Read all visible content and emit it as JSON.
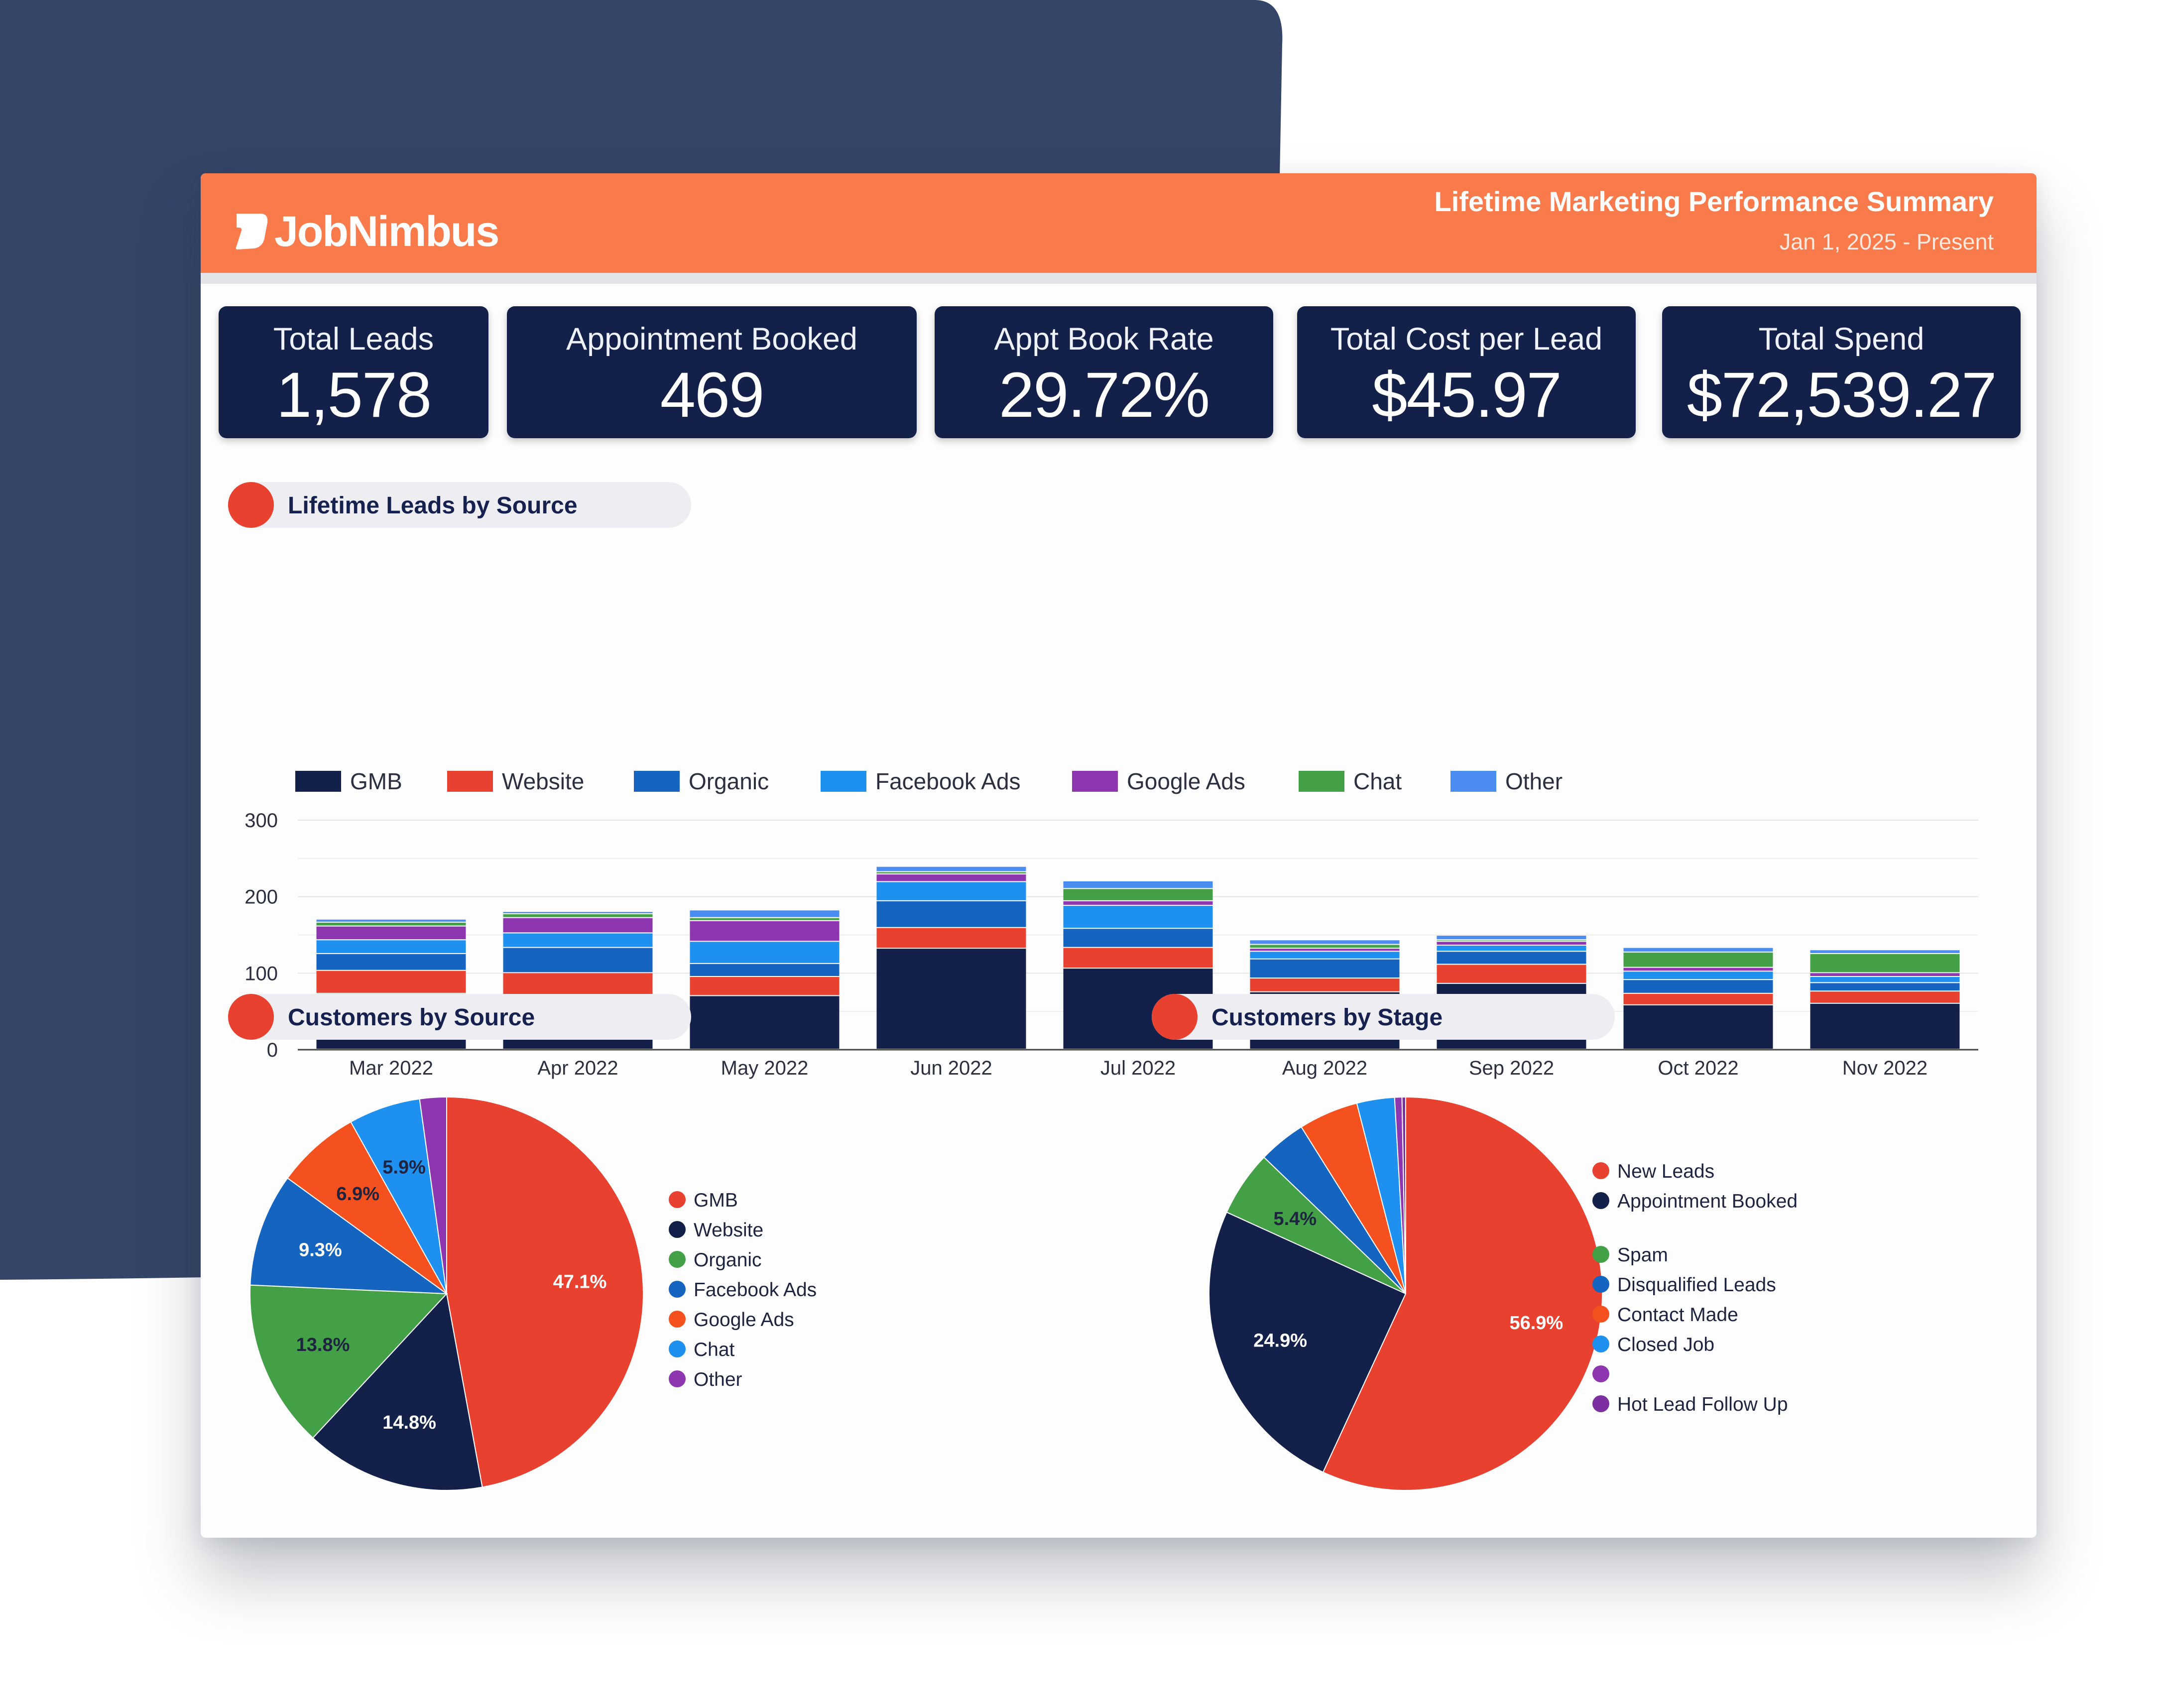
{
  "header": {
    "logo_text": "JobNimbus",
    "title": "Lifetime Marketing Performance Summary",
    "date_range": "Jan 1, 2025 - Present"
  },
  "kpis": [
    {
      "label": "Total Leads",
      "value": "1,578"
    },
    {
      "label": "Appointment Booked",
      "value": "469"
    },
    {
      "label": "Appt Book Rate",
      "value": "29.72%"
    },
    {
      "label": "Total Cost per Lead",
      "value": "$45.97"
    },
    {
      "label": "Total Spend",
      "value": "$72,539.27"
    }
  ],
  "sections": {
    "leads_by_source": "Lifetime Leads by Source",
    "customers_by_source": "Customers by Source",
    "customers_by_stage": "Customers by Stage"
  },
  "colors": {
    "header": "#f97b4c",
    "kpi_bg": "#13214a",
    "background_shape": "#354568"
  },
  "chart_data": [
    {
      "type": "bar",
      "stacked": true,
      "title": "Lifetime Leads by Source",
      "categories": [
        "Mar 2022",
        "Apr 2022",
        "May 2022",
        "Jun 2022",
        "Jul 2022",
        "Aug 2022",
        "Sep 2022",
        "Oct 2022",
        "Nov 2022"
      ],
      "yticks": [
        "0",
        "100",
        "200",
        "300"
      ],
      "ylim": [
        0,
        300
      ],
      "legend_position": "top",
      "series": [
        {
          "name": "GMB",
          "color": "#13214a",
          "values": [
            73,
            67,
            70,
            132,
            106,
            75,
            86,
            58,
            60
          ]
        },
        {
          "name": "Website",
          "color": "#e8412f",
          "values": [
            30,
            33,
            25,
            27,
            27,
            18,
            25,
            15,
            16
          ]
        },
        {
          "name": "Organic",
          "color": "#1565c0",
          "values": [
            22,
            33,
            17,
            35,
            25,
            25,
            17,
            18,
            11
          ]
        },
        {
          "name": "Facebook Ads",
          "color": "#1e90f0",
          "values": [
            18,
            19,
            29,
            25,
            30,
            10,
            8,
            11,
            8
          ]
        },
        {
          "name": "Google Ads",
          "color": "#8e35b0",
          "values": [
            18,
            20,
            27,
            10,
            6,
            4,
            5,
            5,
            5
          ]
        },
        {
          "name": "Chat",
          "color": "#43a047",
          "values": [
            5,
            5,
            4,
            3,
            16,
            5,
            2,
            20,
            25
          ]
        },
        {
          "name": "Other",
          "color": "#4a8cf0",
          "values": [
            4,
            3,
            10,
            7,
            10,
            6,
            6,
            6,
            5
          ]
        }
      ]
    },
    {
      "type": "pie",
      "title": "Customers by Source",
      "labels": [
        "GMB",
        "Website",
        "Organic",
        "Facebook Ads",
        "Google Ads",
        "Chat",
        "Other"
      ],
      "values": [
        47.1,
        14.8,
        13.8,
        9.3,
        6.9,
        5.9,
        2.2
      ],
      "display_labels": [
        "47.1%",
        "14.8%",
        "13.8%",
        "9.3%",
        "6.9%",
        "5.9%",
        ""
      ],
      "label_colors": [
        "#ffffff",
        "#ffffff",
        "#1e2440",
        "#ffffff",
        "#1e2440",
        "#1e2440",
        "#ffffff"
      ],
      "colors": [
        "#e8412f",
        "#13214a",
        "#43a047",
        "#1565c0",
        "#f4511e",
        "#1e90f0",
        "#8e35b0"
      ]
    },
    {
      "type": "pie",
      "title": "Customers by Stage",
      "labels": [
        "New Leads",
        "Appointment Booked",
        "Spam",
        "Disqualified Leads",
        "Contact Made",
        "Closed Job",
        "",
        "Hot Lead Follow Up"
      ],
      "values": [
        56.9,
        24.9,
        5.4,
        3.9,
        4.9,
        3.1,
        0.6,
        0.3
      ],
      "display_labels": [
        "56.9%",
        "24.9%",
        "5.4%",
        "",
        "",
        "",
        "",
        ""
      ],
      "label_colors": [
        "#ffffff",
        "#ffffff",
        "#1e2440",
        "#ffffff",
        "#ffffff",
        "#ffffff",
        "#ffffff",
        "#ffffff"
      ],
      "colors": [
        "#e8412f",
        "#13214a",
        "#43a047",
        "#1565c0",
        "#f4511e",
        "#1e90f0",
        "#8e35b0",
        "#7b2fa0"
      ]
    }
  ]
}
